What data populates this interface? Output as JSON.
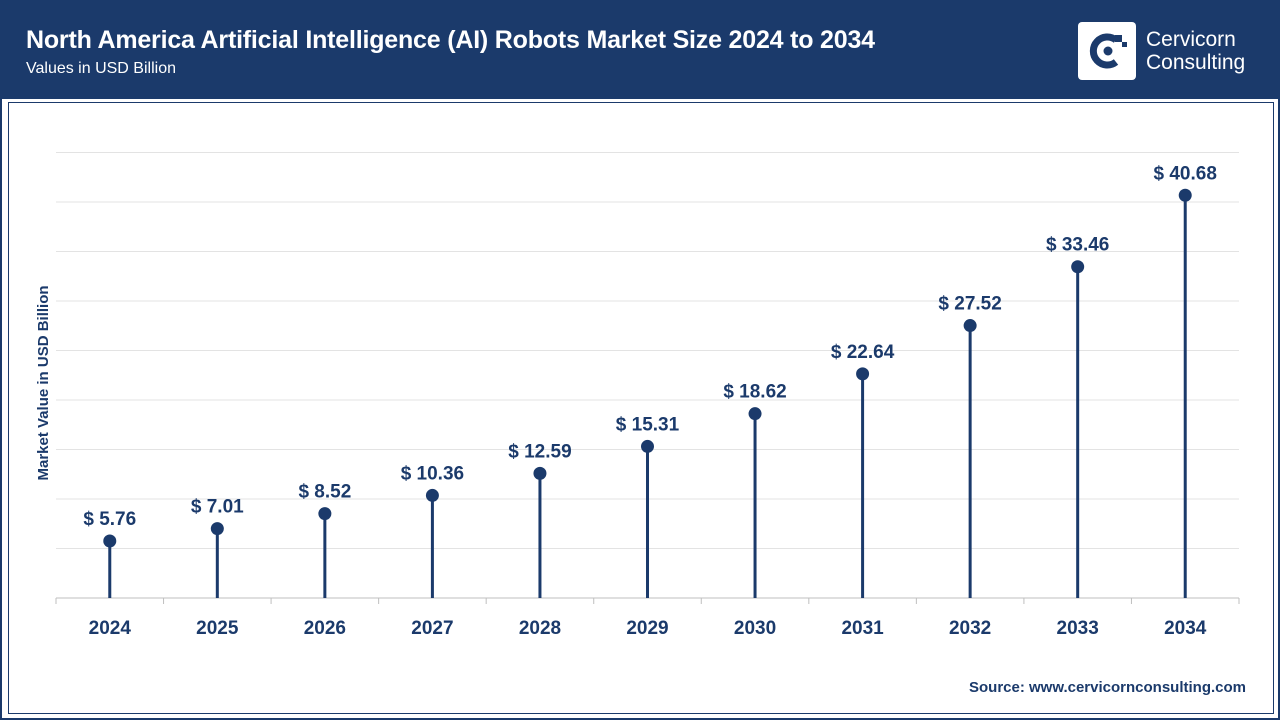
{
  "header": {
    "title": "North America Artificial Intelligence (AI) Robots Market Size 2024 to 2034",
    "subtitle": "Values in USD Billion"
  },
  "logo": {
    "line1": "Cervicorn",
    "line2": "Consulting",
    "icon": "cervicorn-logo-icon"
  },
  "source": "Source: www.cervicornconsulting.com",
  "colors": {
    "brand": "#1b3a6b",
    "gridline": "#e3e3e3",
    "background": "#ffffff"
  },
  "chart_data": {
    "type": "lollipop",
    "ylabel": "Market Value in USD Billion",
    "xlabel": "",
    "categories": [
      "2024",
      "2025",
      "2026",
      "2027",
      "2028",
      "2029",
      "2030",
      "2031",
      "2032",
      "2033",
      "2034"
    ],
    "values": [
      5.76,
      7.01,
      8.52,
      10.36,
      12.59,
      15.31,
      18.62,
      22.64,
      27.52,
      33.46,
      40.68
    ],
    "value_labels": [
      "$ 5.76",
      "$ 7.01",
      "$ 8.52",
      "$ 10.36",
      "$ 12.59",
      "$ 15.31",
      "$ 18.62",
      "$ 22.64",
      "$ 27.52",
      "$ 33.46",
      "$ 40.68"
    ],
    "ylim": [
      0,
      45
    ],
    "grid": true,
    "legend": "none"
  }
}
